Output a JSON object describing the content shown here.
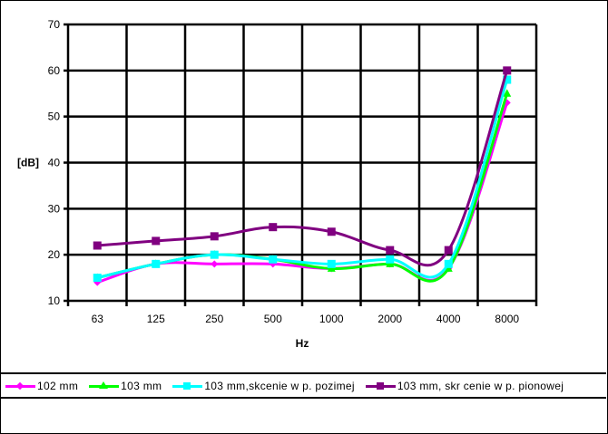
{
  "chart_data": {
    "type": "line",
    "title": "",
    "xlabel": "Hz",
    "ylabel": "[dB]",
    "categories": [
      "63",
      "125",
      "250",
      "500",
      "1000",
      "2000",
      "4000",
      "8000"
    ],
    "ylim": [
      10,
      70
    ],
    "yticks": [
      10,
      20,
      30,
      40,
      50,
      60,
      70
    ],
    "grid": true,
    "legend_position": "bottom",
    "smoothed": true,
    "series": [
      {
        "name": "102 mm",
        "color": "#ff00ff",
        "marker": "diamond",
        "values": [
          14,
          18,
          18,
          18,
          17,
          18,
          17,
          53
        ]
      },
      {
        "name": "103 mm",
        "color": "#00ff00",
        "marker": "triangle",
        "values": [
          15,
          18,
          20,
          19,
          17,
          18,
          17,
          55
        ]
      },
      {
        "name": "103 mm,skcenie w p. pozimej",
        "color": "#00ffff",
        "marker": "square",
        "values": [
          15,
          18,
          20,
          19,
          18,
          19,
          18,
          58
        ]
      },
      {
        "name": "103 mm, skr cenie w p. pionowej",
        "color": "#800080",
        "marker": "square",
        "values": [
          22,
          23,
          24,
          26,
          25,
          21,
          21,
          60
        ]
      }
    ]
  },
  "legend": {
    "items": [
      {
        "label": "102 mm",
        "color": "#ff00ff"
      },
      {
        "label": "103 mm",
        "color": "#00ff00"
      },
      {
        "label": "103 mm,skcenie w p. pozimej",
        "color": "#00ffff"
      },
      {
        "label": "103 mm, skr cenie w p. pionowej",
        "color": "#800080"
      }
    ]
  },
  "axis": {
    "x_title": "Hz",
    "y_title": "[dB]"
  }
}
